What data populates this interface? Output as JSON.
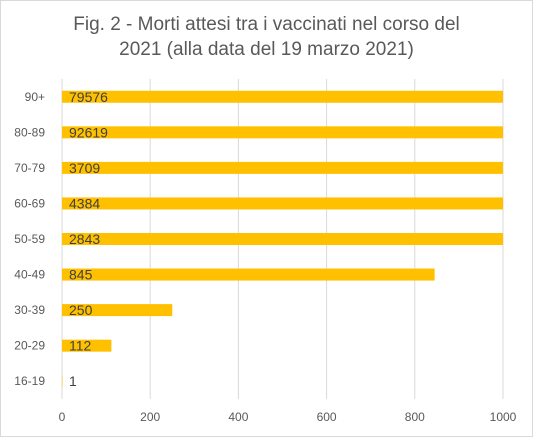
{
  "chart_data": {
    "type": "bar",
    "orientation": "horizontal",
    "title_lines": [
      "Fig. 2 - Morti attesi tra i vaccinati nel corso del",
      "2021 (alla data del 19 marzo 2021)"
    ],
    "categories": [
      "90+",
      "80-89",
      "70-79",
      "60-69",
      "50-59",
      "40-49",
      "30-39",
      "20-29",
      "16-19"
    ],
    "values": [
      79576,
      92619,
      3709,
      4384,
      2843,
      845,
      250,
      112,
      1
    ],
    "data_labels": [
      "79576",
      "92619",
      "3709",
      "4384",
      "2843",
      "845",
      "250",
      "112",
      "1"
    ],
    "xlim": [
      0,
      1000
    ],
    "xticks": [
      "0",
      "200",
      "400",
      "600",
      "800",
      "1000"
    ],
    "grid": true,
    "legend": "none",
    "bar_color": "#ffc000",
    "grid_color": "#d9d9d9"
  }
}
